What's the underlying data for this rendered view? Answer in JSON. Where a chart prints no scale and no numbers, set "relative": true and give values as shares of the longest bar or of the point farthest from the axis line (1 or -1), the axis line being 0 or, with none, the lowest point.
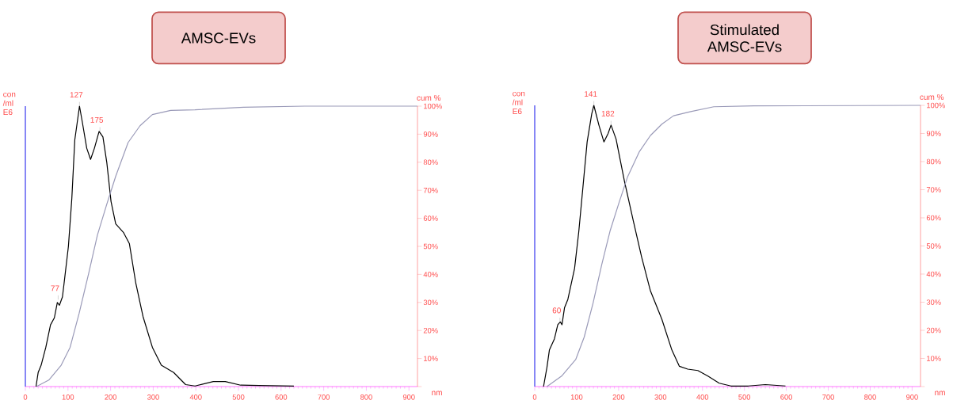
{
  "chart_data": [
    {
      "type": "line",
      "title": "AMSC-EVs",
      "xlabel": "nm",
      "ylabel": "con /ml E6",
      "relative": true,
      "xlim": [
        0,
        920
      ],
      "xticks": [
        0,
        100,
        200,
        300,
        400,
        500,
        600,
        700,
        800,
        900
      ],
      "series": [
        {
          "color": "#000000",
          "x": [
            25,
            30,
            37,
            48,
            59,
            68,
            75,
            80,
            87,
            91,
            101,
            109,
            116,
            127,
            134,
            144,
            153,
            162,
            173,
            182,
            191,
            201,
            212,
            230,
            244,
            259,
            276,
            298,
            319,
            348,
            376,
            398,
            441,
            469,
            505,
            548,
            630
          ],
          "values": [
            0,
            0.05,
            0.076,
            0.14,
            0.22,
            0.245,
            0.3,
            0.29,
            0.32,
            0.37,
            0.5,
            0.67,
            0.88,
            1.0,
            0.94,
            0.85,
            0.81,
            0.85,
            0.91,
            0.89,
            0.8,
            0.66,
            0.58,
            0.55,
            0.51,
            0.37,
            0.25,
            0.14,
            0.076,
            0.05,
            0.007,
            0.002,
            0.018,
            0.018,
            0.005,
            0.004,
            0.002
          ]
        }
      ],
      "annotations": [
        {
          "text": "127",
          "x": 127,
          "y": 1.0
        },
        {
          "text": "175",
          "x": 175,
          "y": 0.91
        },
        {
          "text": "77",
          "x": 77,
          "y": 0.31
        }
      ]
    },
    {
      "type": "line",
      "ylabel": "cum %",
      "tick_labels": "y",
      "xlim": [
        0,
        920
      ],
      "ylim": [
        0,
        100
      ],
      "yticks": [
        {
          "value": 0,
          "label": null
        },
        {
          "value": 10,
          "label": "10%"
        },
        {
          "value": 20,
          "label": "20%"
        },
        {
          "value": 30,
          "label": "30%"
        },
        {
          "value": 40,
          "label": "40%"
        },
        {
          "value": 50,
          "label": "50%"
        },
        {
          "value": 60,
          "label": "60%"
        },
        {
          "value": 70,
          "label": "70%"
        },
        {
          "value": 80,
          "label": "80%"
        },
        {
          "value": 90,
          "label": "90%"
        },
        {
          "value": 100,
          "label": "100%"
        }
      ],
      "series": [
        {
          "color": "#9a9ab8",
          "x": [
            26,
            55,
            84,
            105,
            126,
            148,
            169,
            191,
            212,
            241,
            269,
            298,
            341,
            398,
            512,
            655,
            920
          ],
          "values": [
            0,
            2.3,
            7.6,
            14,
            26,
            40,
            54,
            65,
            75,
            87,
            93,
            97,
            98.5,
            98.7,
            99.6,
            100,
            100
          ]
        }
      ]
    },
    {
      "type": "line",
      "title": "Stimulated AMSC-EVs",
      "xlabel": "nm",
      "ylabel": "con /ml E6",
      "relative": true,
      "xlim": [
        0,
        920
      ],
      "xticks": [
        0,
        100,
        200,
        300,
        400,
        500,
        600,
        700,
        800,
        900
      ],
      "series": [
        {
          "color": "#000000",
          "x": [
            21,
            29,
            35,
            47,
            55,
            61,
            65,
            71,
            79,
            95,
            105,
            115,
            125,
            136,
            141,
            153,
            165,
            175,
            182,
            194,
            214,
            235,
            255,
            276,
            303,
            327,
            345,
            365,
            389,
            413,
            440,
            468,
            509,
            550,
            598
          ],
          "values": [
            0,
            0.067,
            0.13,
            0.17,
            0.22,
            0.23,
            0.22,
            0.28,
            0.31,
            0.42,
            0.55,
            0.71,
            0.87,
            0.97,
            1.0,
            0.93,
            0.87,
            0.9,
            0.93,
            0.88,
            0.73,
            0.59,
            0.46,
            0.34,
            0.24,
            0.13,
            0.072,
            0.062,
            0.057,
            0.037,
            0.012,
            0.002,
            0.002,
            0.007,
            0.002
          ]
        }
      ],
      "annotations": [
        {
          "text": "141",
          "x": 141,
          "y": 1.0
        },
        {
          "text": "182",
          "x": 182,
          "y": 0.93
        },
        {
          "text": "60",
          "x": 60,
          "y": 0.23
        }
      ]
    },
    {
      "type": "line",
      "ylabel": "cum %",
      "tick_labels": "y",
      "xlim": [
        0,
        920
      ],
      "ylim": [
        0,
        100
      ],
      "yticks": [
        {
          "value": 0,
          "label": null
        },
        {
          "value": 10,
          "label": "10%"
        },
        {
          "value": 20,
          "label": "20%"
        },
        {
          "value": 30,
          "label": "30%"
        },
        {
          "value": 40,
          "label": "40%"
        },
        {
          "value": 50,
          "label": "50%"
        },
        {
          "value": 60,
          "label": "60%"
        },
        {
          "value": 70,
          "label": "70%"
        },
        {
          "value": 80,
          "label": "80%"
        },
        {
          "value": 90,
          "label": "90%"
        },
        {
          "value": 100,
          "label": "100%"
        }
      ],
      "series": [
        {
          "color": "#9a9ab8",
          "x": [
            29,
            64,
            98,
            118,
            139,
            160,
            180,
            201,
            221,
            249,
            276,
            303,
            331,
            372,
            427,
            523,
            920
          ],
          "values": [
            0,
            3.7,
            9.7,
            17.6,
            29.6,
            43.5,
            55.5,
            65.4,
            74.4,
            83.4,
            89.3,
            93.3,
            96.3,
            97.8,
            99.5,
            99.8,
            100
          ]
        }
      ]
    }
  ]
}
